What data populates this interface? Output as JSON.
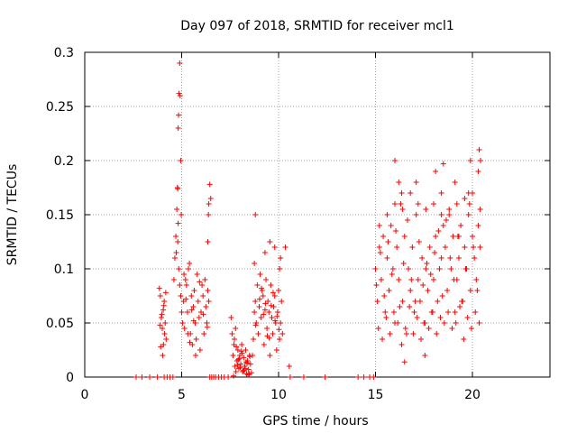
{
  "chart_data": {
    "type": "scatter",
    "title": "Day 097 of 2018, SRMTID for receiver mcl1",
    "xlabel": "GPS time / hours",
    "ylabel": "SRMTID / TECUs",
    "xlim": [
      0,
      24
    ],
    "ylim": [
      0,
      0.3
    ],
    "xticks": [
      0,
      5,
      10,
      15,
      20
    ],
    "xtick_labels": [
      "0",
      "5",
      "10",
      "15",
      "20"
    ],
    "yticks": [
      0,
      0.05,
      0.1,
      0.15,
      0.2,
      0.25,
      0.3
    ],
    "ytick_labels": [
      "0",
      "0.05",
      "0.1",
      "0.15",
      "0.2",
      "0.25",
      "0.3"
    ],
    "grid": true,
    "marker": "+",
    "color": "#ff0000",
    "series": [
      {
        "name": "mcl1",
        "x": [
          2.65,
          2.95,
          3.35,
          3.75,
          4.1,
          4.25,
          4.4,
          4.55,
          3.85,
          3.9,
          3.95,
          4.0,
          4.05,
          4.1,
          4.15,
          4.2,
          3.92,
          4.02,
          4.12,
          3.98,
          4.08,
          4.18,
          3.88,
          4.06,
          4.6,
          4.65,
          4.7,
          4.75,
          4.8,
          4.85,
          4.9,
          4.95,
          4.72,
          4.82,
          4.78,
          4.8,
          4.82,
          4.84,
          4.86,
          4.9,
          4.92,
          4.95,
          4.98,
          5.0,
          5.05,
          5.1,
          5.15,
          5.2,
          5.25,
          5.3,
          5.35,
          5.4,
          5.45,
          5.5,
          5.55,
          5.6,
          5.65,
          5.7,
          5.75,
          5.8,
          5.85,
          5.9,
          5.95,
          6.0,
          6.05,
          6.1,
          6.15,
          6.2,
          6.25,
          6.3,
          6.35,
          6.4,
          5.12,
          5.32,
          5.52,
          5.72,
          5.92,
          6.12,
          6.32,
          5.22,
          5.42,
          5.62,
          6.35,
          6.38,
          6.4,
          6.45,
          6.5,
          6.45,
          6.55,
          6.65,
          6.75,
          6.9,
          7.05,
          7.2,
          7.4,
          7.55,
          7.6,
          7.65,
          7.7,
          7.75,
          7.8,
          7.85,
          7.9,
          7.95,
          8.0,
          8.05,
          8.1,
          8.15,
          8.2,
          8.25,
          8.3,
          8.35,
          8.4,
          8.45,
          8.5,
          8.55,
          8.6,
          7.72,
          7.82,
          7.92,
          8.02,
          8.12,
          8.22,
          8.32,
          8.42,
          8.52,
          7.68,
          7.88,
          8.08,
          8.28,
          8.48,
          7.78,
          7.98,
          8.18,
          8.38,
          8.65,
          8.7,
          8.75,
          8.8,
          8.85,
          8.9,
          8.95,
          9.0,
          9.05,
          9.1,
          9.15,
          9.2,
          9.25,
          9.3,
          9.35,
          9.4,
          9.45,
          9.5,
          9.55,
          9.6,
          9.65,
          9.7,
          9.75,
          9.8,
          9.85,
          9.9,
          9.95,
          10.0,
          10.05,
          10.1,
          10.15,
          10.2,
          8.82,
          9.02,
          9.22,
          9.42,
          9.62,
          9.82,
          10.02,
          9.12,
          9.32,
          9.52,
          9.72,
          9.92,
          8.75,
          8.8,
          9.3,
          9.55,
          9.8,
          10.05,
          10.1,
          10.35,
          10.55,
          10.6,
          11.3,
          12.4,
          14.1,
          14.4,
          14.7,
          14.9,
          15.0,
          15.1,
          15.2,
          15.3,
          15.4,
          15.5,
          15.6,
          15.7,
          15.8,
          15.9,
          16.0,
          16.1,
          16.2,
          16.3,
          16.4,
          16.5,
          16.6,
          16.7,
          16.8,
          16.9,
          17.0,
          17.1,
          17.2,
          17.3,
          17.4,
          17.5,
          17.6,
          17.7,
          17.8,
          17.9,
          18.0,
          18.1,
          18.2,
          18.3,
          18.4,
          18.5,
          18.6,
          18.7,
          18.8,
          18.9,
          19.0,
          19.1,
          19.2,
          19.3,
          19.4,
          19.5,
          19.6,
          19.7,
          19.8,
          19.9,
          20.0,
          20.1,
          20.2,
          20.3,
          20.4,
          15.05,
          15.25,
          15.45,
          15.65,
          15.85,
          16.05,
          16.25,
          16.45,
          16.65,
          16.85,
          17.05,
          17.25,
          17.45,
          17.65,
          17.85,
          18.05,
          18.25,
          18.45,
          18.65,
          18.85,
          19.05,
          19.25,
          19.45,
          19.65,
          19.85,
          20.05,
          20.25,
          15.15,
          15.35,
          15.55,
          15.75,
          15.95,
          16.15,
          16.35,
          16.55,
          16.75,
          16.95,
          17.15,
          17.35,
          17.55,
          17.75,
          17.95,
          18.15,
          18.35,
          18.55,
          18.75,
          18.95,
          19.15,
          19.35,
          19.55,
          19.75,
          19.95,
          20.15,
          20.35,
          15.2,
          15.6,
          16.0,
          16.4,
          16.8,
          17.2,
          17.6,
          18.0,
          18.4,
          18.8,
          19.2,
          19.6,
          20.0,
          20.4,
          16.0,
          16.2,
          16.35,
          16.5,
          17.1,
          17.55,
          18.1,
          18.4,
          18.5,
          19.1,
          19.3,
          19.8,
          19.9,
          20.3,
          20.35,
          20.42
        ],
        "y": [
          0,
          0,
          0,
          0,
          0,
          0,
          0,
          0,
          0.082,
          0.075,
          0.055,
          0.045,
          0.062,
          0.07,
          0.05,
          0.035,
          0.028,
          0.02,
          0.04,
          0.058,
          0.066,
          0.078,
          0.048,
          0.03,
          0.09,
          0.11,
          0.13,
          0.155,
          0.125,
          0.1,
          0.085,
          0.075,
          0.115,
          0.142,
          0.175,
          0.174,
          0.23,
          0.242,
          0.262,
          0.29,
          0.26,
          0.2,
          0.15,
          0.06,
          0.05,
          0.07,
          0.045,
          0.09,
          0.085,
          0.06,
          0.1,
          0.105,
          0.04,
          0.075,
          0.03,
          0.065,
          0.08,
          0.05,
          0.035,
          0.095,
          0.07,
          0.055,
          0.025,
          0.06,
          0.085,
          0.075,
          0.04,
          0.09,
          0.065,
          0.05,
          0.08,
          0.07,
          0.095,
          0.04,
          0.062,
          0.02,
          0.088,
          0.058,
          0.046,
          0.072,
          0.032,
          0.052,
          0.125,
          0.15,
          0.16,
          0.178,
          0.165,
          0,
          0,
          0,
          0,
          0,
          0,
          0,
          0,
          0.055,
          0.04,
          0.02,
          0.03,
          0.01,
          0.005,
          0.015,
          0.025,
          0.008,
          0.02,
          0.012,
          0.03,
          0.005,
          0.018,
          0.01,
          0.025,
          0.003,
          0.015,
          0.007,
          0.02,
          0.012,
          0.004,
          0.035,
          0.028,
          0.016,
          0.009,
          0.022,
          0.006,
          0.014,
          0.002,
          0.019,
          0.001,
          0.011,
          0.024,
          0.008,
          0.003,
          0.045,
          0.017,
          0.006,
          0.013,
          0.02,
          0.035,
          0.06,
          0.07,
          0.05,
          0.085,
          0.04,
          0.065,
          0.095,
          0.055,
          0.08,
          0.075,
          0.03,
          0.062,
          0.09,
          0.045,
          0.07,
          0.06,
          0.02,
          0.085,
          0.055,
          0.04,
          0.065,
          0.075,
          0.05,
          0.025,
          0.06,
          0.08,
          0.035,
          0.05,
          0.07,
          0.04,
          0.048,
          0.072,
          0.058,
          0.038,
          0.066,
          0.052,
          0.044,
          0.082,
          0.068,
          0.036,
          0.078,
          0.056,
          0.105,
          0.15,
          0.115,
          0.125,
          0.12,
          0.1,
          0.11,
          0.12,
          0.01,
          0,
          0,
          0,
          0,
          0,
          0,
          0,
          0.1,
          0.07,
          0.12,
          0.09,
          0.13,
          0.06,
          0.11,
          0.08,
          0.14,
          0.1,
          0.05,
          0.12,
          0.09,
          0.16,
          0.07,
          0.13,
          0.04,
          0.1,
          0.08,
          0.12,
          0.06,
          0.15,
          0.09,
          0.07,
          0.11,
          0.05,
          0.1,
          0.08,
          0.12,
          0.06,
          0.09,
          0.13,
          0.07,
          0.1,
          0.11,
          0.14,
          0.12,
          0.08,
          0.15,
          0.1,
          0.13,
          0.06,
          0.09,
          0.11,
          0.14,
          0.07,
          0.12,
          0.1,
          0.15,
          0.08,
          0.13,
          0.11,
          0.09,
          0.14,
          0.12,
          0.085,
          0.115,
          0.075,
          0.125,
          0.095,
          0.135,
          0.065,
          0.105,
          0.145,
          0.09,
          0.07,
          0.125,
          0.085,
          0.105,
          0.095,
          0.115,
          0.135,
          0.075,
          0.145,
          0.11,
          0.09,
          0.13,
          0.07,
          0.1,
          0.16,
          0.12,
          0.08,
          0.045,
          0.035,
          0.055,
          0.04,
          0.06,
          0.05,
          0.03,
          0.045,
          0.065,
          0.04,
          0.055,
          0.035,
          0.05,
          0.045,
          0.06,
          0.04,
          0.055,
          0.05,
          0.06,
          0.045,
          0.05,
          0.065,
          0.035,
          0.055,
          0.045,
          0.06,
          0.05,
          0.14,
          0.15,
          0.16,
          0.155,
          0.17,
          0.16,
          0.155,
          0.16,
          0.15,
          0.155,
          0.16,
          0.165,
          0.17,
          0.155,
          0.2,
          0.18,
          0.17,
          0.014,
          0.18,
          0.02,
          0.19,
          0.17,
          0.197,
          0.18,
          0.13,
          0.17,
          0.2,
          0.19,
          0.21,
          0.2
        ]
      }
    ]
  }
}
